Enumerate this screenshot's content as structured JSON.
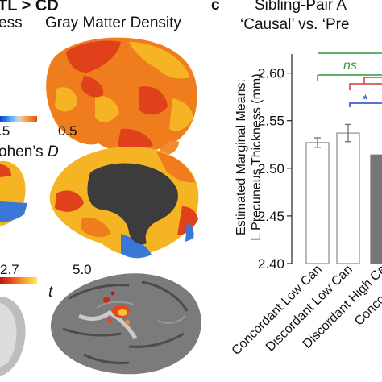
{
  "left_panel": {
    "header": "TL > CD",
    "header_left_fragment": "ess",
    "gmd_title": "Gray Matter Density",
    "colorbar1": {
      "min_label": ".5",
      "max_label": "0.5",
      "metric": "ohen’s",
      "metric_italic": "D",
      "colors": [
        "#1a3cc8",
        "#2f8cf0",
        "#a6d3f5",
        "#f6c79a",
        "#f08a33",
        "#e04e16"
      ]
    },
    "colorbar2": {
      "min_label": "2.7",
      "max_label": "5.0",
      "metric_italic": "t",
      "colors": [
        "#c01616",
        "#e8461e",
        "#f5862a",
        "#f9c23a",
        "#fde95a"
      ]
    },
    "brain_colors": {
      "red": "#e0401a",
      "orange": "#ef7d1d",
      "yellow": "#f4b424",
      "blue": "#3a78d8",
      "medial_wall": "#3c3c3c",
      "gray_brain": "#7b7b7b"
    }
  },
  "panel_c": {
    "panel_letter": "c",
    "title_line1": "Sibling-Pair A",
    "title_line2": "‘Causal’ vs. ‘Pre",
    "sig_labels": {
      "green": "ns",
      "blue": "*"
    },
    "sig_colors": {
      "green": "#2a9a3c",
      "red": "#d23b32",
      "blue": "#2346c8"
    }
  },
  "chart_data": {
    "type": "bar",
    "ylabel_line1": "Estimated Marginal Means:",
    "ylabel_line2": "L Precuneus Thickness (mm)",
    "ylim": [
      2.4,
      2.62
    ],
    "yticks": [
      "2.40",
      "2.45",
      "2.50",
      "2.55",
      "2.60"
    ],
    "categories": [
      "Concordant Low Can",
      "Discordant Low Can",
      "Discordant High Ca",
      "Concordant H"
    ],
    "values": [
      2.527,
      2.537,
      2.514,
      null
    ],
    "errors": [
      0.005,
      0.009,
      0,
      0
    ],
    "bar_colors": [
      "#ffffff",
      "#ffffff",
      "#777777",
      "#777777"
    ]
  }
}
